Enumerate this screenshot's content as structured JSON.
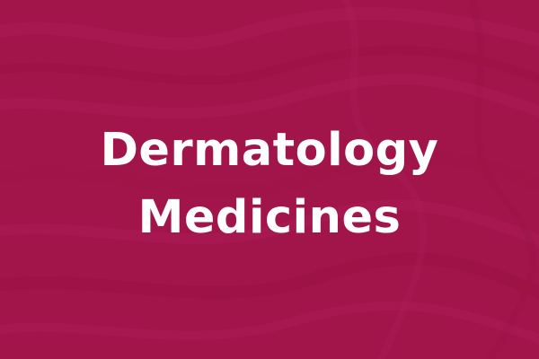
{
  "background_color": "#a2154b",
  "texture_color": "#b3205a",
  "title": {
    "line1": "Dermatology",
    "line2": "Medicines",
    "color": "#ffffff"
  }
}
